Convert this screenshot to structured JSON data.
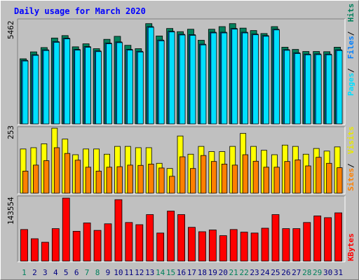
{
  "chart_data": [
    {
      "type": "bar",
      "title": "Daily usage for March 2020",
      "panel": "hits-files-pages",
      "ymax_label": "5462",
      "ylim": [
        0,
        5462
      ],
      "categories": [
        "1",
        "2",
        "3",
        "4",
        "5",
        "6",
        "7",
        "8",
        "9",
        "10",
        "11",
        "12",
        "13",
        "14",
        "15",
        "16",
        "17",
        "18",
        "19",
        "20",
        "21",
        "22",
        "23",
        "24",
        "25",
        "26",
        "27",
        "28",
        "29",
        "30",
        "31"
      ],
      "weekend_days": [
        "1",
        "7",
        "8",
        "14",
        "15",
        "21",
        "22",
        "28",
        "29"
      ],
      "legend": [
        "Hits",
        "Files",
        "Pages"
      ],
      "series": [
        {
          "name": "Hits",
          "color": "#00805c",
          "values": [
            3480,
            3850,
            4080,
            4590,
            4720,
            4120,
            4280,
            4020,
            4520,
            4680,
            4200,
            4020,
            5360,
            4700,
            5100,
            4930,
            5060,
            4470,
            5060,
            5200,
            5360,
            5120,
            4990,
            4830,
            5200,
            4100,
            3980,
            3870,
            3870,
            3860,
            4100
          ]
        },
        {
          "name": "Files",
          "color": "#0080ff",
          "values": [
            3400,
            3700,
            3960,
            4400,
            4580,
            3980,
            4130,
            3900,
            4320,
            4380,
            3980,
            3880,
            5200,
            4480,
            4950,
            4790,
            4770,
            4260,
            4900,
            4900,
            5100,
            4900,
            4800,
            4720,
            5060,
            3970,
            3800,
            3730,
            3740,
            3730,
            3960
          ]
        },
        {
          "name": "Pages",
          "color": "#00e0ff",
          "values": [
            3400,
            3700,
            3960,
            4400,
            4580,
            3980,
            4130,
            3900,
            4320,
            4380,
            3980,
            3880,
            5200,
            4480,
            4950,
            4790,
            4770,
            4260,
            4900,
            4900,
            5100,
            4900,
            4800,
            4720,
            5060,
            3970,
            3800,
            3730,
            3740,
            3730,
            3960
          ]
        }
      ]
    },
    {
      "type": "bar",
      "panel": "visits-sites",
      "ymax_label": "253",
      "ylim": [
        0,
        253
      ],
      "categories": [
        "1",
        "2",
        "3",
        "4",
        "5",
        "6",
        "7",
        "8",
        "9",
        "10",
        "11",
        "12",
        "13",
        "14",
        "15",
        "16",
        "17",
        "18",
        "19",
        "20",
        "21",
        "22",
        "23",
        "24",
        "25",
        "26",
        "27",
        "28",
        "29",
        "30",
        "31"
      ],
      "legend": [
        "Visits",
        "Sites"
      ],
      "series": [
        {
          "name": "Visits",
          "color": "#ffff00",
          "values": [
            170,
            175,
            190,
            250,
            208,
            148,
            170,
            170,
            150,
            180,
            180,
            175,
            175,
            115,
            95,
            220,
            150,
            180,
            160,
            160,
            180,
            230,
            180,
            165,
            148,
            185,
            180,
            150,
            172,
            162,
            178
          ]
        },
        {
          "name": "Sites",
          "color": "#ff8000",
          "values": [
            85,
            108,
            125,
            175,
            153,
            127,
            100,
            85,
            100,
            102,
            108,
            107,
            112,
            97,
            65,
            140,
            95,
            145,
            122,
            112,
            108,
            148,
            123,
            100,
            100,
            122,
            128,
            105,
            138,
            115,
            98
          ]
        }
      ]
    },
    {
      "type": "bar",
      "panel": "kbytes",
      "ymax_label": "143554",
      "ylim": [
        0,
        143554
      ],
      "categories": [
        "1",
        "2",
        "3",
        "4",
        "5",
        "6",
        "7",
        "8",
        "9",
        "10",
        "11",
        "12",
        "13",
        "14",
        "15",
        "16",
        "17",
        "18",
        "19",
        "20",
        "21",
        "22",
        "23",
        "24",
        "25",
        "26",
        "27",
        "28",
        "29",
        "30",
        "31"
      ],
      "legend": [
        "KBytes"
      ],
      "series": [
        {
          "name": "KBytes",
          "color": "#ff0000",
          "values": [
            72000,
            51000,
            43000,
            74000,
            143554,
            68000,
            87000,
            70000,
            85000,
            140000,
            88000,
            83000,
            106000,
            64000,
            114000,
            106000,
            77000,
            67000,
            71000,
            58000,
            72000,
            66000,
            64000,
            75000,
            106000,
            74000,
            74000,
            88000,
            103000,
            99000,
            110000
          ]
        }
      ]
    }
  ]
}
